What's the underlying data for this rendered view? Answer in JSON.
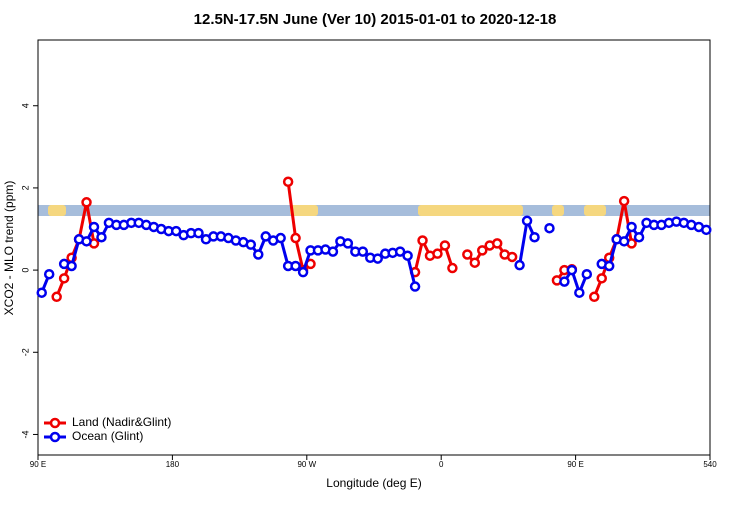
{
  "chart_data": {
    "type": "line",
    "title": "12.5N-17.5N June (Ver 10)   2015-01-01 to 2020-12-18",
    "x_label": "Longitude (deg E)",
    "y_label": "XCO2 - MLO trend (ppm)",
    "x": [
      92.5,
      97.5,
      102.5,
      107.5,
      112.5,
      117.5,
      122.5,
      127.5,
      132.5,
      137.5,
      142.5,
      147.5,
      152.5,
      157.5,
      162.5,
      167.5,
      172.5,
      177.5,
      182.5,
      187.5,
      192.5,
      197.5,
      202.5,
      207.5,
      212.5,
      217.5,
      222.5,
      227.5,
      232.5,
      237.5,
      242.5,
      247.5,
      252.5,
      257.5,
      262.5,
      267.5,
      272.5,
      277.5,
      282.5,
      287.5,
      292.5,
      297.5,
      302.5,
      307.5,
      312.5,
      317.5,
      322.5,
      327.5,
      332.5,
      337.5,
      342.5,
      347.5,
      352.5,
      357.5,
      362.5,
      367.5,
      372.5,
      377.5,
      382.5,
      387.5,
      392.5,
      397.5,
      402.5,
      407.5,
      412.5,
      417.5,
      422.5,
      427.5,
      432.5,
      437.5,
      442.5,
      447.5,
      452.5,
      457.5,
      462.5,
      467.5,
      472.5,
      477.5,
      482.5,
      487.5,
      492.5,
      497.5,
      502.5,
      507.5,
      512.5,
      517.5,
      522.5,
      527.5,
      532.5,
      537.5
    ],
    "series": [
      {
        "name": "Land (Nadir&Glint)",
        "color": "#ee0000",
        "values": [
          null,
          null,
          -0.65,
          -0.2,
          0.3,
          0.75,
          1.65,
          0.65,
          null,
          null,
          null,
          null,
          null,
          null,
          null,
          null,
          null,
          null,
          null,
          null,
          null,
          null,
          null,
          null,
          null,
          null,
          null,
          null,
          null,
          null,
          null,
          null,
          null,
          2.15,
          0.78,
          0.0,
          0.15,
          null,
          null,
          null,
          null,
          null,
          null,
          null,
          null,
          null,
          null,
          null,
          null,
          null,
          -0.05,
          0.72,
          0.35,
          0.4,
          0.6,
          0.05,
          null,
          0.38,
          0.18,
          0.48,
          0.6,
          0.65,
          0.38,
          0.32,
          null,
          null,
          null,
          null,
          null,
          -0.25,
          0.0,
          0.02,
          null,
          null,
          -0.65,
          -0.2,
          0.3,
          0.75,
          1.68,
          0.65,
          null,
          null,
          null,
          null,
          null,
          null,
          null,
          null,
          null,
          null
        ]
      },
      {
        "name": "Ocean (Glint)",
        "color": "#0000ee",
        "values": [
          -0.55,
          -0.1,
          null,
          0.15,
          0.1,
          0.75,
          0.7,
          1.05,
          0.8,
          1.15,
          1.1,
          1.1,
          1.15,
          1.15,
          1.1,
          1.05,
          1.0,
          0.95,
          0.95,
          0.85,
          0.9,
          0.9,
          0.75,
          0.82,
          0.82,
          0.78,
          0.72,
          0.68,
          0.62,
          0.38,
          0.82,
          0.72,
          0.78,
          0.1,
          0.1,
          -0.05,
          0.48,
          0.48,
          0.5,
          0.45,
          0.7,
          0.65,
          0.45,
          0.45,
          0.3,
          0.28,
          0.4,
          0.42,
          0.45,
          0.35,
          -0.4,
          null,
          null,
          null,
          null,
          null,
          null,
          null,
          null,
          null,
          null,
          null,
          null,
          null,
          0.12,
          1.2,
          0.8,
          null,
          1.02,
          null,
          -0.28,
          0.0,
          -0.55,
          -0.1,
          null,
          0.15,
          0.1,
          0.75,
          0.7,
          1.05,
          0.8,
          1.15,
          1.1,
          1.1,
          1.15,
          1.18,
          1.15,
          1.1,
          1.05,
          0.98
        ]
      }
    ],
    "xlim": [
      90,
      540
    ],
    "xticks": [
      {
        "value": 90,
        "label": "90 E"
      },
      180,
      {
        "value": 270,
        "label": "90 W"
      },
      {
        "value": 360,
        "label": "0"
      },
      {
        "value": 450,
        "label": "90 E"
      },
      540
    ],
    "ylim": [
      -4.5,
      5.6
    ],
    "yticks": [
      -4,
      -2,
      0,
      2,
      4
    ],
    "legend": "bottom-left"
  }
}
